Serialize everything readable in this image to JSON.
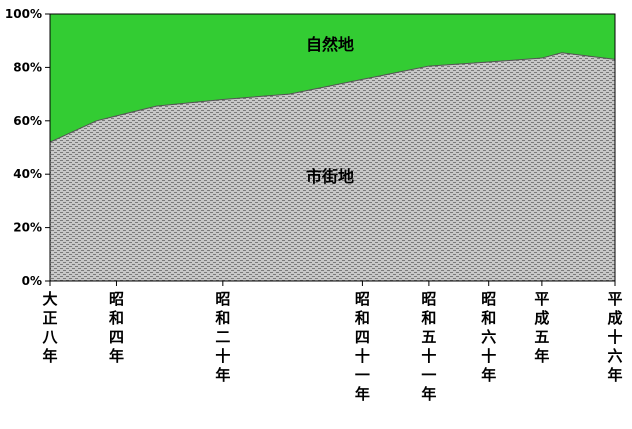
{
  "chart_data": {
    "type": "area",
    "stacked": true,
    "percent_stacked": true,
    "title": "",
    "xlabel": "",
    "ylabel": "",
    "ylim": [
      0,
      100
    ],
    "yticks": [
      "0%",
      "20%",
      "40%",
      "60%",
      "80%",
      "100%"
    ],
    "x_years": [
      1919,
      1926,
      1935,
      1945,
      1955,
      1966,
      1976,
      1985,
      1993,
      1996,
      2004
    ],
    "x_tick_labels": [
      {
        "year": 1919,
        "label": "大正八年"
      },
      {
        "year": 1929,
        "label": "昭和四年"
      },
      {
        "year": 1945,
        "label": "昭和二十年"
      },
      {
        "year": 1966,
        "label": "昭和四十一年"
      },
      {
        "year": 1976,
        "label": "昭和五十一年"
      },
      {
        "year": 1985,
        "label": "昭和六十年"
      },
      {
        "year": 1993,
        "label": "平成五年"
      },
      {
        "year": 2004,
        "label": "平成十六年"
      }
    ],
    "series": [
      {
        "name": "市街地",
        "color": "#c0c0c0",
        "values": [
          52,
          60,
          65.5,
          68,
          70,
          75.5,
          80.5,
          82,
          83.5,
          85.5,
          83
        ]
      },
      {
        "name": "自然地",
        "color": "#33cc33",
        "values": [
          48,
          40,
          34.5,
          32,
          30,
          24.5,
          19.5,
          18,
          16.5,
          14.5,
          17
        ]
      }
    ],
    "grid": false,
    "legend": "none"
  }
}
